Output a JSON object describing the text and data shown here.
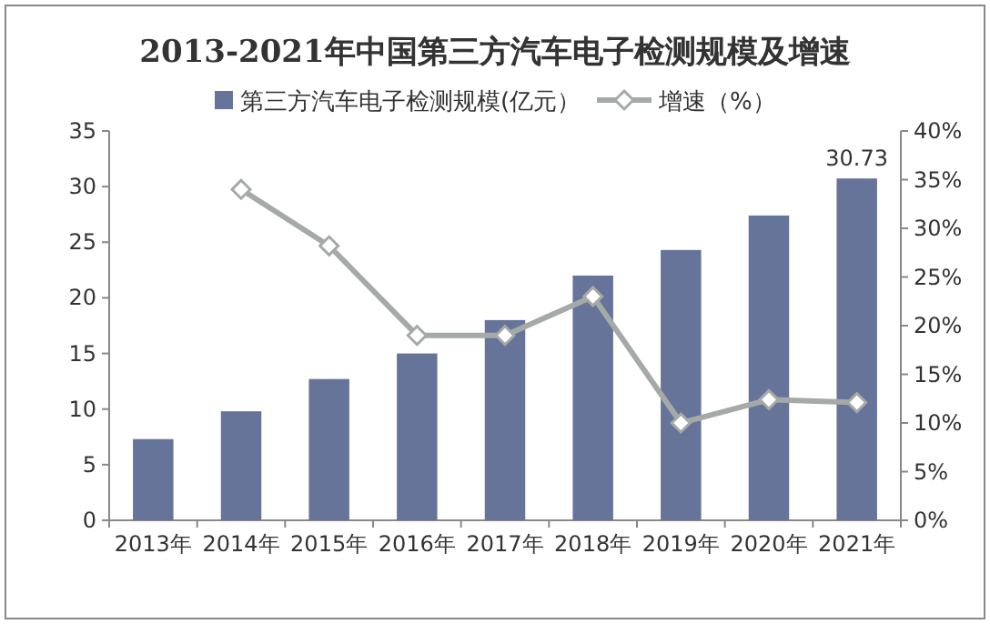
{
  "chart_data": {
    "type": "bar",
    "title": "2013-2021年中国第三方汽车电子检测规模及增速",
    "categories": [
      "2013年",
      "2014年",
      "2015年",
      "2016年",
      "2017年",
      "2018年",
      "2019年",
      "2020年",
      "2021年"
    ],
    "series": [
      {
        "name": "第三方汽车电子检测规模(亿元）",
        "color": "#67749a",
        "values": [
          7.3,
          9.8,
          12.7,
          15.0,
          18.0,
          22.0,
          24.3,
          27.4,
          30.73
        ],
        "value_labels": [
          null,
          null,
          null,
          null,
          null,
          null,
          null,
          null,
          "30.73"
        ]
      },
      {
        "name": "增速（%）",
        "type": "line",
        "axis": "y2",
        "color": "#a5aaa7",
        "marker": "diamond",
        "values": [
          null,
          34,
          28.2,
          19,
          19,
          23,
          10,
          12.4,
          12.1
        ]
      }
    ],
    "ylim": [
      0,
      35
    ],
    "yticks": [
      0,
      5,
      10,
      15,
      20,
      25,
      30,
      35
    ],
    "y2lim": [
      0,
      40
    ],
    "y2ticks": [
      {
        "value": 0,
        "label": "0%"
      },
      {
        "value": 5,
        "label": "5%"
      },
      {
        "value": 10,
        "label": "10%"
      },
      {
        "value": 15,
        "label": "15%"
      },
      {
        "value": 20,
        "label": "20%"
      },
      {
        "value": 25,
        "label": "25%"
      },
      {
        "value": 30,
        "label": "30%"
      },
      {
        "value": 35,
        "label": "35%"
      },
      {
        "value": 40,
        "label": "40%"
      }
    ],
    "legend": "top",
    "grid": false
  }
}
